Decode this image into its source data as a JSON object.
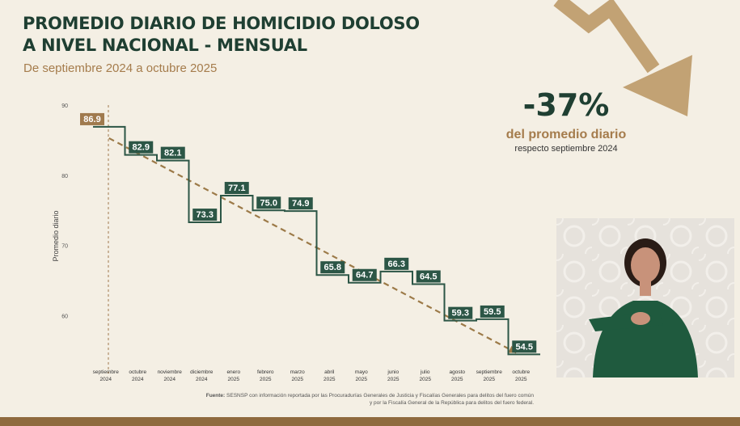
{
  "title_line1": "PROMEDIO DIARIO DE HOMICIDIO DOLOSO",
  "title_line2": "A NIVEL NACIONAL - MENSUAL",
  "subtitle": "De septiembre 2024 a octubre 2025",
  "highlight": {
    "value": "-37%",
    "label": "del promedio diario",
    "sublabel": "respecto septiembre 2024"
  },
  "source": {
    "label": "Fuente:",
    "line1": "SESNSP con información reportada por las Procuradurías Generales de Justicia y Fiscalías Generales para delitos del fuero común",
    "line2": "y por la Fiscalía General de la República para delitos del fuero federal."
  },
  "colors": {
    "green": "#2c5646",
    "gold": "#a07a4e",
    "trend": "#9c7a48",
    "arrow": "#c2a274"
  },
  "chart_data": {
    "type": "line",
    "step": true,
    "ylabel": "Promedio diario",
    "ylim": [
      55,
      90
    ],
    "yticks": [
      60,
      70,
      80,
      90
    ],
    "grid": false,
    "categories": [
      [
        "septiembre",
        "2024"
      ],
      [
        "octubre",
        "2024"
      ],
      [
        "noviembre",
        "2024"
      ],
      [
        "diciembre",
        "2024"
      ],
      [
        "enero",
        "2025"
      ],
      [
        "febrero",
        "2025"
      ],
      [
        "marzo",
        "2025"
      ],
      [
        "abril",
        "2025"
      ],
      [
        "mayo",
        "2025"
      ],
      [
        "junio",
        "2025"
      ],
      [
        "julio",
        "2025"
      ],
      [
        "agosto",
        "2025"
      ],
      [
        "septiembre",
        "2025"
      ],
      [
        "octubre",
        "2025"
      ]
    ],
    "values": [
      86.9,
      82.9,
      82.1,
      73.3,
      77.1,
      75.0,
      74.9,
      65.8,
      64.7,
      66.3,
      64.5,
      59.3,
      59.5,
      54.5
    ],
    "value_labels": [
      "86.9",
      "82.9",
      "82.1",
      "73.3",
      "77.1",
      "75.0",
      "74.9",
      "65.8",
      "64.7",
      "66.3",
      "64.5",
      "59.3",
      "59.5",
      "54.5"
    ],
    "trend": {
      "from": 86.9,
      "to": 54.5,
      "style": "dashed",
      "arrow": true
    }
  }
}
